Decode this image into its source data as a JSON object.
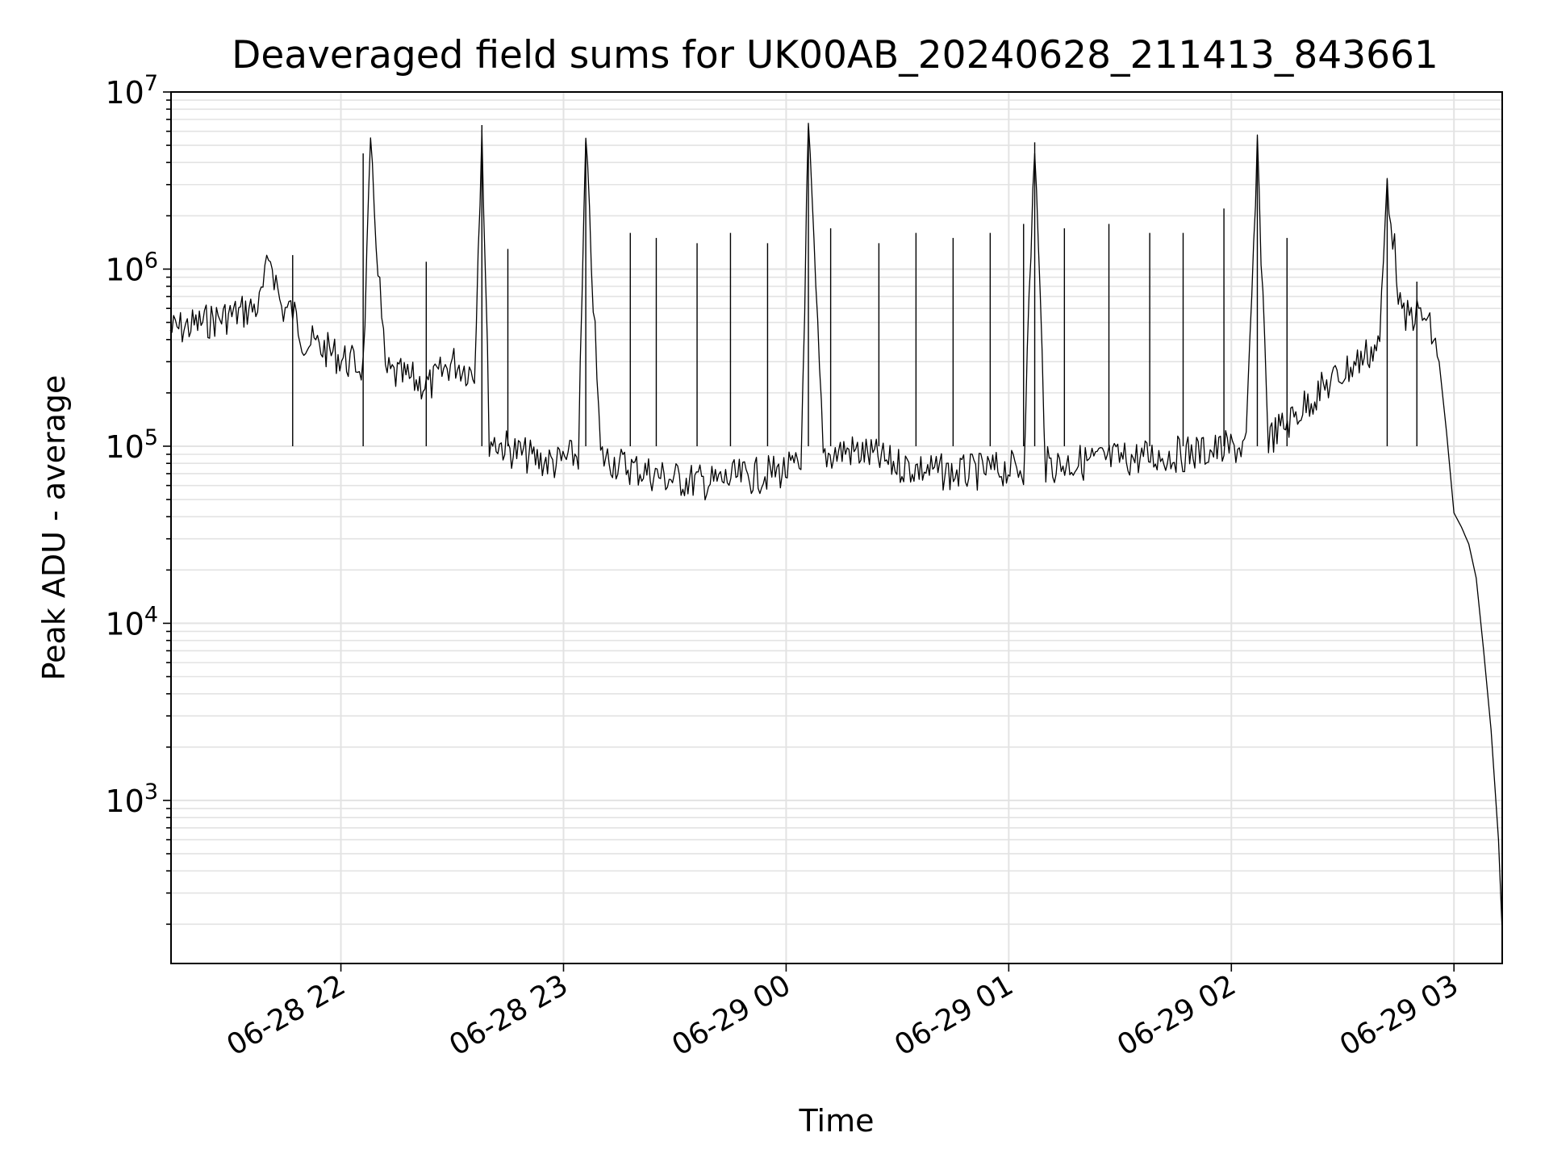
{
  "chart_data": {
    "type": "line",
    "title": "Deaveraged field sums for UK00AB_20240628_211413_843661",
    "xlabel": "Time",
    "ylabel": "Peak ADU - average",
    "x_scale": "time",
    "y_scale": "log",
    "xlim": [
      "2024-06-28T21:14:13",
      "2024-06-29T03:13:00"
    ],
    "ylim": [
      120,
      10000000
    ],
    "grid": true,
    "line_color": "#000000",
    "x_ticks": [
      {
        "t": "2024-06-28T22:00",
        "label": "06-28 22"
      },
      {
        "t": "2024-06-28T23:00",
        "label": "06-28 23"
      },
      {
        "t": "2024-06-29T00:00",
        "label": "06-29 00"
      },
      {
        "t": "2024-06-29T01:00",
        "label": "06-29 01"
      },
      {
        "t": "2024-06-29T02:00",
        "label": "06-29 02"
      },
      {
        "t": "2024-06-29T03:00",
        "label": "06-29 03"
      }
    ],
    "y_ticks": [
      {
        "value": 1000,
        "base": "10",
        "exp": "3"
      },
      {
        "value": 10000,
        "base": "10",
        "exp": "4"
      },
      {
        "value": 100000,
        "base": "10",
        "exp": "5"
      },
      {
        "value": 1000000,
        "base": "10",
        "exp": "6"
      },
      {
        "value": 10000000,
        "base": "10",
        "exp": "7"
      }
    ],
    "series": [
      {
        "x": [
          "2024-06-28T21:14",
          "2024-06-28T21:20",
          "2024-06-28T21:26",
          "2024-06-28T21:32",
          "2024-06-28T21:38",
          "2024-06-28T21:41",
          "2024-06-28T21:44",
          "2024-06-28T21:47",
          "2024-06-28T21:50",
          "2024-06-28T21:56",
          "2024-06-28T22:02",
          "2024-06-28T22:06",
          "2024-06-28T22:08",
          "2024-06-28T22:12",
          "2024-06-28T22:18",
          "2024-06-28T22:24",
          "2024-06-28T22:30",
          "2024-06-28T22:36",
          "2024-06-28T22:38",
          "2024-06-28T22:40",
          "2024-06-28T22:46",
          "2024-06-28T22:52",
          "2024-06-28T22:58",
          "2024-06-28T23:04",
          "2024-06-28T23:06",
          "2024-06-28T23:10",
          "2024-06-28T23:16",
          "2024-06-28T23:22",
          "2024-06-28T23:28",
          "2024-06-28T23:34",
          "2024-06-28T23:40",
          "2024-06-28T23:46",
          "2024-06-28T23:52",
          "2024-06-28T23:58",
          "2024-06-29T00:04",
          "2024-06-29T00:06",
          "2024-06-29T00:10",
          "2024-06-29T00:16",
          "2024-06-29T00:22",
          "2024-06-29T00:28",
          "2024-06-29T00:34",
          "2024-06-29T00:40",
          "2024-06-29T00:46",
          "2024-06-29T00:52",
          "2024-06-29T00:58",
          "2024-06-29T01:04",
          "2024-06-29T01:07",
          "2024-06-29T01:10",
          "2024-06-29T01:16",
          "2024-06-29T01:22",
          "2024-06-29T01:28",
          "2024-06-29T01:34",
          "2024-06-29T01:40",
          "2024-06-29T01:46",
          "2024-06-29T01:52",
          "2024-06-29T01:58",
          "2024-06-29T02:04",
          "2024-06-29T02:07",
          "2024-06-29T02:10",
          "2024-06-29T02:16",
          "2024-06-29T02:22",
          "2024-06-29T02:28",
          "2024-06-29T02:34",
          "2024-06-29T02:40",
          "2024-06-29T02:42",
          "2024-06-29T02:46",
          "2024-06-29T02:49",
          "2024-06-29T02:52",
          "2024-06-29T02:54",
          "2024-06-29T02:56",
          "2024-06-29T02:58",
          "2024-06-29T03:00",
          "2024-06-29T03:02",
          "2024-06-29T03:04",
          "2024-06-29T03:06",
          "2024-06-29T03:08",
          "2024-06-29T03:10",
          "2024-06-29T03:12",
          "2024-06-29T03:13"
        ],
        "y": [
          450000,
          480000,
          520000,
          560000,
          620000,
          1200000,
          600000,
          580000,
          400000,
          350000,
          300000,
          280000,
          4500000,
          260000,
          240000,
          220000,
          300000,
          260000,
          6500000,
          110000,
          95000,
          85000,
          80000,
          90000,
          5200000,
          88000,
          78000,
          72000,
          66000,
          64000,
          62000,
          66000,
          68000,
          72000,
          75000,
          6200000,
          88000,
          95000,
          90000,
          80000,
          76000,
          72000,
          70000,
          72000,
          74000,
          76000,
          5200000,
          78000,
          80000,
          82000,
          84000,
          86000,
          88000,
          90000,
          93000,
          96000,
          100000,
          4500000,
          110000,
          140000,
          190000,
          240000,
          300000,
          380000,
          3200000,
          500000,
          560000,
          540000,
          430000,
          300000,
          120000,
          42000,
          35000,
          28000,
          18000,
          7000,
          2500,
          600,
          180
        ]
      }
    ],
    "spikes": [
      {
        "x": "2024-06-28T21:47",
        "y": 1200000
      },
      {
        "x": "2024-06-28T22:06",
        "y": 4500000
      },
      {
        "x": "2024-06-28T22:23",
        "y": 1100000
      },
      {
        "x": "2024-06-28T22:38",
        "y": 6500000
      },
      {
        "x": "2024-06-28T22:45",
        "y": 1300000
      },
      {
        "x": "2024-06-28T23:06",
        "y": 5200000
      },
      {
        "x": "2024-06-28T23:18",
        "y": 1600000
      },
      {
        "x": "2024-06-28T23:25",
        "y": 1500000
      },
      {
        "x": "2024-06-28T23:36",
        "y": 1400000
      },
      {
        "x": "2024-06-28T23:45",
        "y": 1600000
      },
      {
        "x": "2024-06-28T23:55",
        "y": 1400000
      },
      {
        "x": "2024-06-29T00:06",
        "y": 6200000
      },
      {
        "x": "2024-06-29T00:12",
        "y": 1700000
      },
      {
        "x": "2024-06-29T00:25",
        "y": 1400000
      },
      {
        "x": "2024-06-29T00:35",
        "y": 1600000
      },
      {
        "x": "2024-06-29T00:45",
        "y": 1500000
      },
      {
        "x": "2024-06-29T00:55",
        "y": 1600000
      },
      {
        "x": "2024-06-29T01:04",
        "y": 1800000
      },
      {
        "x": "2024-06-29T01:07",
        "y": 5200000
      },
      {
        "x": "2024-06-29T01:15",
        "y": 1700000
      },
      {
        "x": "2024-06-29T01:27",
        "y": 1800000
      },
      {
        "x": "2024-06-29T01:38",
        "y": 1600000
      },
      {
        "x": "2024-06-29T01:47",
        "y": 1600000
      },
      {
        "x": "2024-06-29T01:58",
        "y": 2200000
      },
      {
        "x": "2024-06-29T02:07",
        "y": 4500000
      },
      {
        "x": "2024-06-29T02:15",
        "y": 1500000
      },
      {
        "x": "2024-06-29T02:42",
        "y": 3200000
      },
      {
        "x": "2024-06-29T02:50",
        "y": 850000
      }
    ]
  }
}
